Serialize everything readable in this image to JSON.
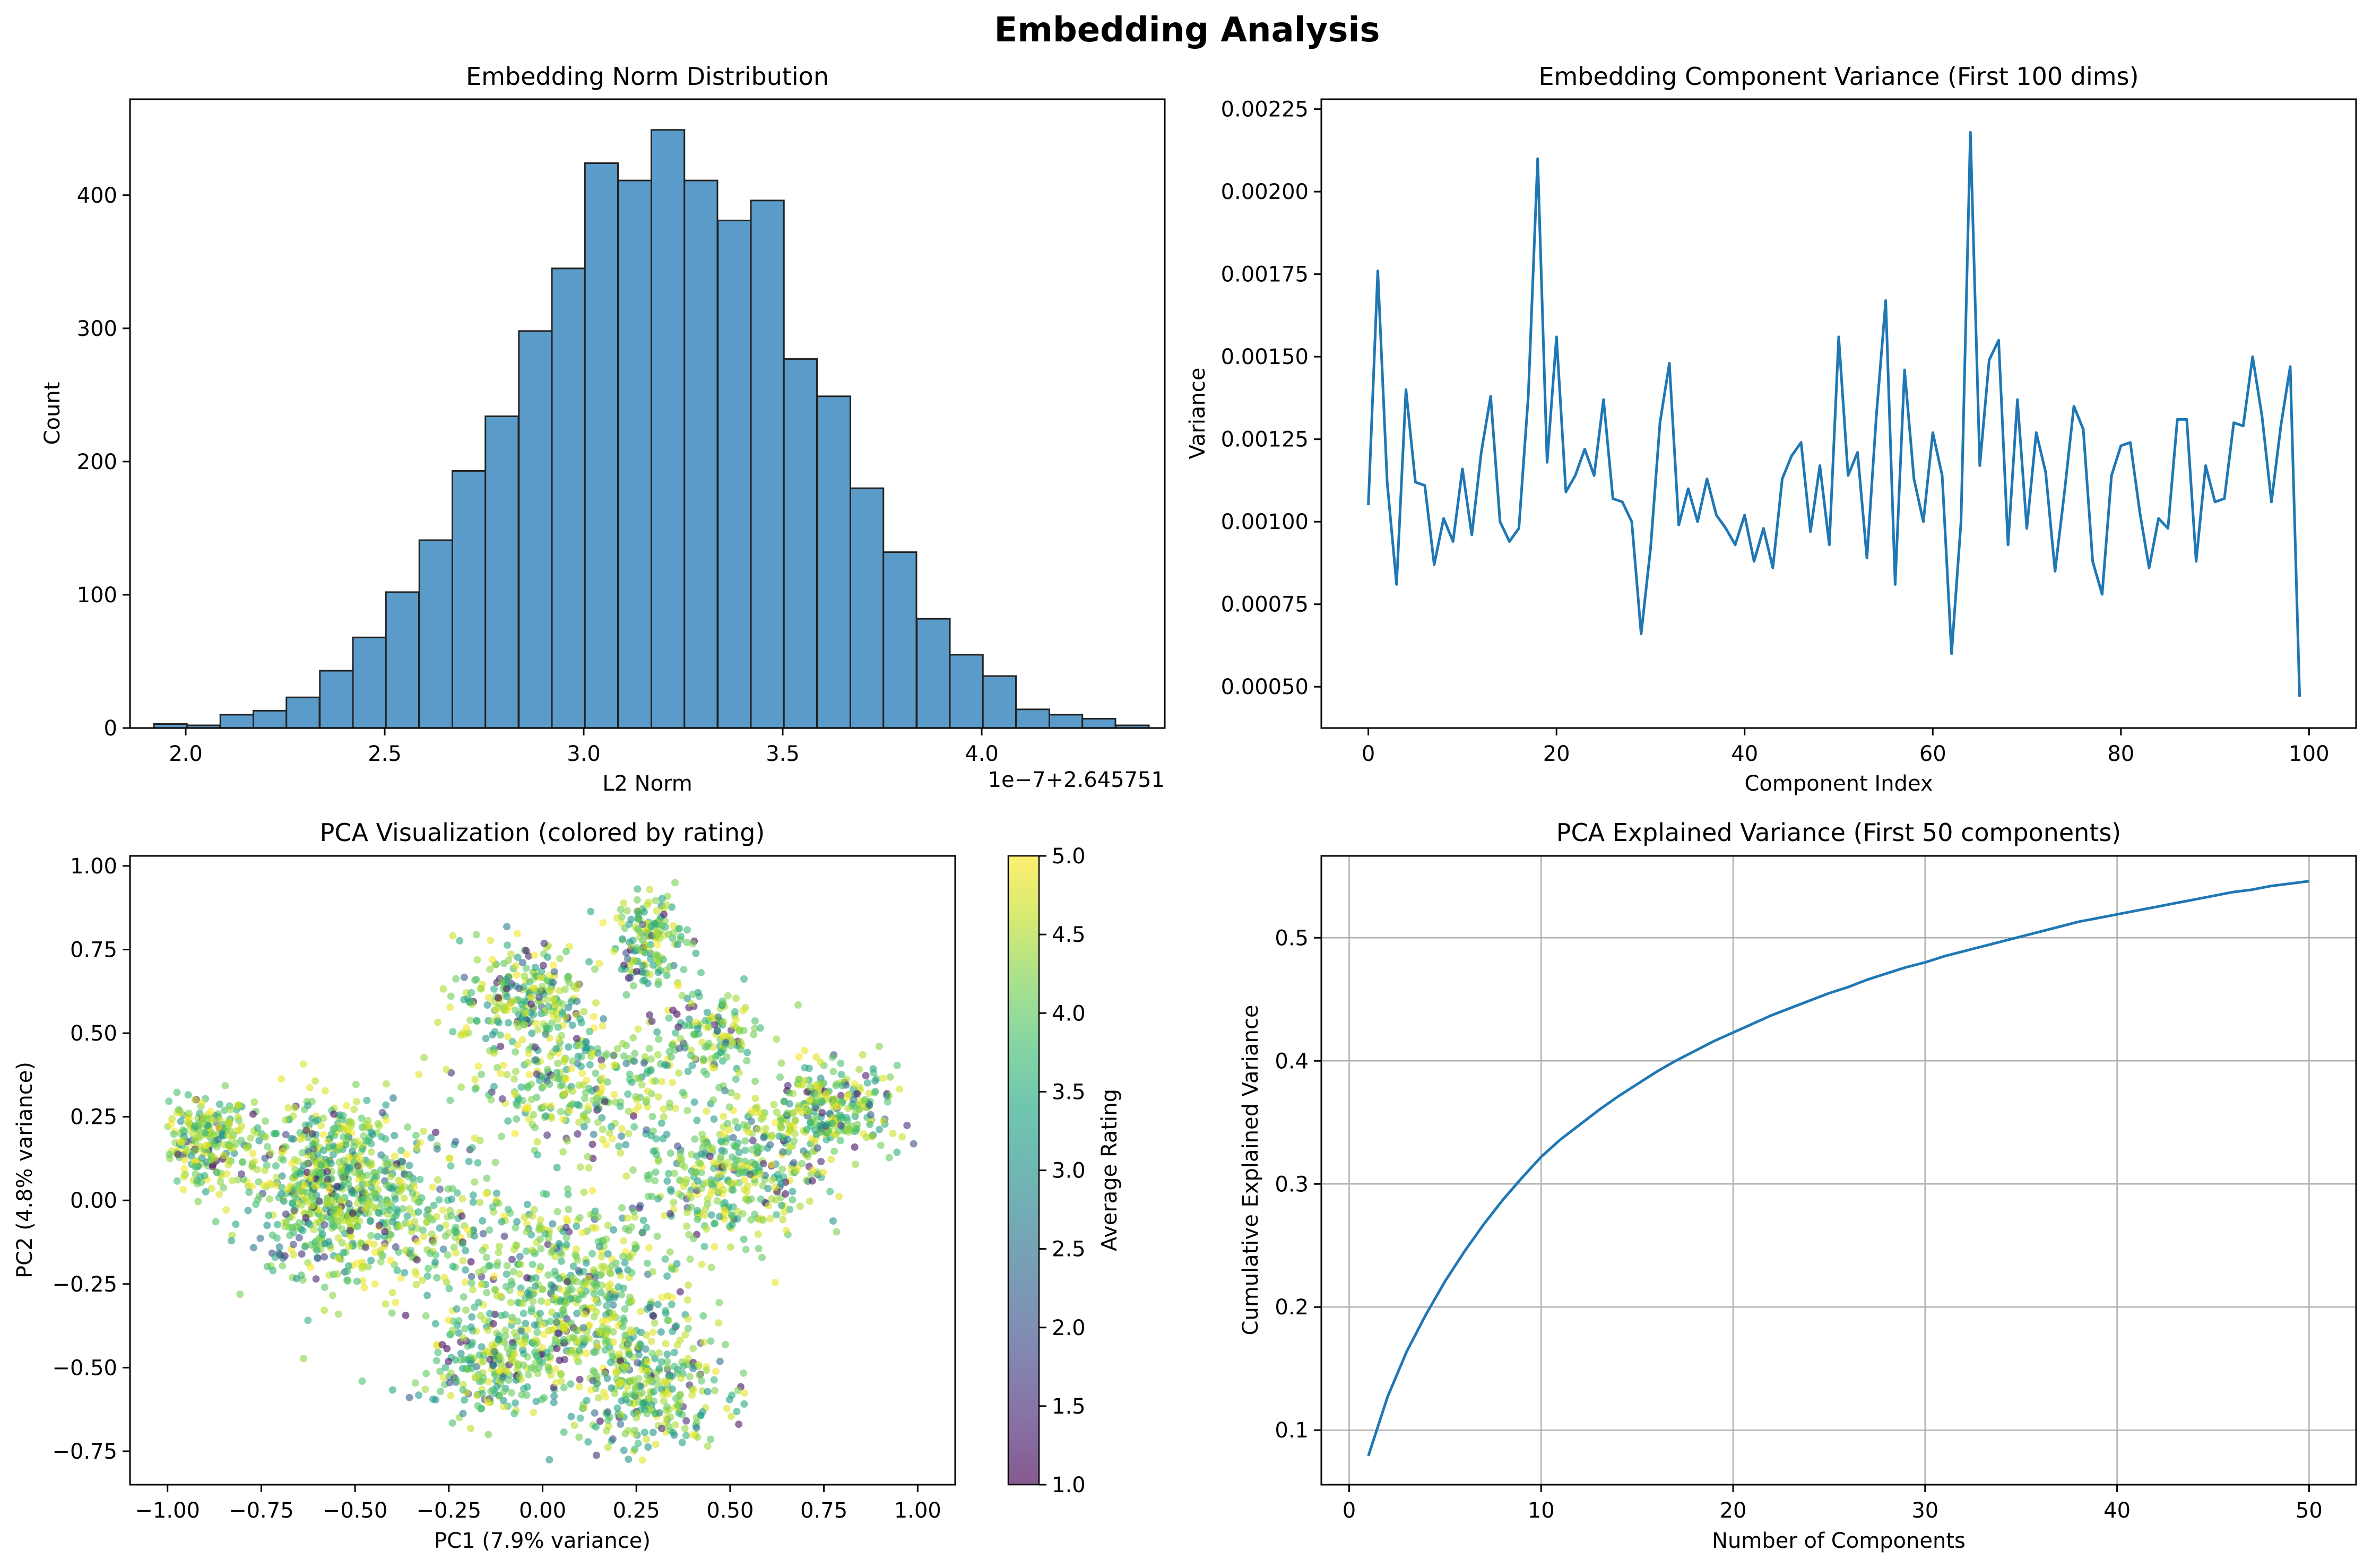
{
  "figure": {
    "title": "Embedding Analysis"
  },
  "colors": {
    "accent": "#1f77b4",
    "hist_fill": "#5b9bc9",
    "grid": "#b0b0b0"
  },
  "chart_data": [
    {
      "type": "bar",
      "title": "Embedding Norm Distribution",
      "xlabel": "L2 Norm",
      "ylabel": "Count",
      "offset_label": "1e−7+2.645751",
      "xlim": [
        1.86,
        4.46
      ],
      "ylim": [
        0,
        472
      ],
      "xticks": [
        2.0,
        2.5,
        3.0,
        3.5,
        4.0
      ],
      "xtick_labels": [
        "2.0",
        "2.5",
        "3.0",
        "3.5",
        "4.0"
      ],
      "yticks": [
        0,
        100,
        200,
        300,
        400
      ],
      "bins": [
        1.92,
        2.003,
        2.087,
        2.17,
        2.253,
        2.337,
        2.42,
        2.503,
        2.587,
        2.67,
        2.753,
        2.837,
        2.92,
        3.003,
        3.087,
        3.17,
        3.253,
        3.337,
        3.42,
        3.503,
        3.587,
        3.67,
        3.753,
        3.837,
        3.92,
        4.003,
        4.087,
        4.17,
        4.253,
        4.337
      ],
      "values": [
        3,
        2,
        10,
        13,
        23,
        43,
        68,
        102,
        141,
        193,
        234,
        298,
        345,
        424,
        411,
        449,
        411,
        381,
        396,
        277,
        249,
        180,
        132,
        82,
        55,
        39,
        14,
        10,
        7,
        2
      ]
    },
    {
      "type": "line",
      "title": "Embedding Component Variance (First 100 dims)",
      "xlabel": "Component Index",
      "ylabel": "Variance",
      "xlim": [
        -5,
        105
      ],
      "ylim": [
        0.000375,
        0.00228
      ],
      "xticks": [
        0,
        20,
        40,
        60,
        80,
        100
      ],
      "yticks": [
        0.0005,
        0.00075,
        0.001,
        0.00125,
        0.0015,
        0.00175,
        0.002,
        0.00225
      ],
      "ytick_labels": [
        "0.00050",
        "0.00075",
        "0.00100",
        "0.00125",
        "0.00150",
        "0.00175",
        "0.00200",
        "0.00225"
      ],
      "y": [
        0.00105,
        0.00176,
        0.00112,
        0.00081,
        0.0014,
        0.00112,
        0.00111,
        0.00087,
        0.00101,
        0.00094,
        0.00116,
        0.00096,
        0.00121,
        0.00138,
        0.001,
        0.00094,
        0.00098,
        0.00138,
        0.0021,
        0.00118,
        0.00156,
        0.00109,
        0.00114,
        0.00122,
        0.00114,
        0.00137,
        0.00107,
        0.00106,
        0.001,
        0.00066,
        0.00092,
        0.0013,
        0.00148,
        0.00099,
        0.0011,
        0.001,
        0.00113,
        0.00102,
        0.00098,
        0.00093,
        0.00102,
        0.00088,
        0.00098,
        0.00086,
        0.00113,
        0.0012,
        0.00124,
        0.00097,
        0.00117,
        0.00093,
        0.00156,
        0.00114,
        0.00121,
        0.00089,
        0.00132,
        0.00167,
        0.00081,
        0.00146,
        0.00113,
        0.001,
        0.00127,
        0.00114,
        0.0006,
        0.001,
        0.00218,
        0.00117,
        0.00149,
        0.00155,
        0.00093,
        0.00137,
        0.00098,
        0.00127,
        0.00115,
        0.00085,
        0.00109,
        0.00135,
        0.00128,
        0.00088,
        0.00078,
        0.00114,
        0.00123,
        0.00124,
        0.00103,
        0.00086,
        0.00101,
        0.00098,
        0.00131,
        0.00131,
        0.00088,
        0.00117,
        0.00106,
        0.00107,
        0.0013,
        0.00129,
        0.0015,
        0.00132,
        0.00106,
        0.00129,
        0.00147,
        0.00047
      ]
    },
    {
      "type": "scatter",
      "title": "PCA Visualization (colored by rating)",
      "xlabel": "PC1 (7.9% variance)",
      "ylabel": "PC2 (4.8% variance)",
      "xlim": [
        -1.1,
        1.1
      ],
      "ylim": [
        -0.85,
        1.03
      ],
      "xticks": [
        -1.0,
        -0.75,
        -0.5,
        -0.25,
        0.0,
        0.25,
        0.5,
        0.75,
        1.0
      ],
      "xtick_labels": [
        "−1.00",
        "−0.75",
        "−0.50",
        "−0.25",
        "0.00",
        "0.25",
        "0.50",
        "0.75",
        "1.00"
      ],
      "yticks": [
        -0.75,
        -0.5,
        -0.25,
        0.0,
        0.25,
        0.5,
        0.75,
        1.0
      ],
      "ytick_labels": [
        "−0.75",
        "−0.50",
        "−0.25",
        "0.00",
        "0.25",
        "0.50",
        "0.75",
        "1.00"
      ],
      "colorbar": {
        "label": "Average Rating",
        "range": [
          1.0,
          5.0
        ],
        "ticks": [
          1.0,
          1.5,
          2.0,
          2.5,
          3.0,
          3.5,
          4.0,
          4.5,
          5.0
        ],
        "tick_labels": [
          "1.0",
          "1.5",
          "2.0",
          "2.5",
          "3.0",
          "3.5",
          "4.0",
          "4.5",
          "5.0"
        ],
        "colormap": "viridis"
      },
      "clusters": [
        {
          "x": -0.9,
          "y": 0.18,
          "sx": 0.06,
          "sy": 0.07,
          "n": 240
        },
        {
          "x": -0.58,
          "y": 0.05,
          "sx": 0.1,
          "sy": 0.13,
          "n": 620
        },
        {
          "x": -0.35,
          "y": -0.05,
          "sx": 0.12,
          "sy": 0.12,
          "n": 240
        },
        {
          "x": -0.05,
          "y": 0.62,
          "sx": 0.09,
          "sy": 0.08,
          "n": 230
        },
        {
          "x": 0.1,
          "y": 0.35,
          "sx": 0.14,
          "sy": 0.1,
          "n": 320
        },
        {
          "x": 0.28,
          "y": 0.78,
          "sx": 0.05,
          "sy": 0.07,
          "n": 160
        },
        {
          "x": 0.45,
          "y": 0.5,
          "sx": 0.07,
          "sy": 0.07,
          "n": 140
        },
        {
          "x": 0.75,
          "y": 0.27,
          "sx": 0.1,
          "sy": 0.07,
          "n": 300
        },
        {
          "x": 0.5,
          "y": 0.08,
          "sx": 0.12,
          "sy": 0.1,
          "n": 360
        },
        {
          "x": 0.05,
          "y": -0.3,
          "sx": 0.16,
          "sy": 0.16,
          "n": 620
        },
        {
          "x": 0.28,
          "y": -0.55,
          "sx": 0.1,
          "sy": 0.1,
          "n": 300
        },
        {
          "x": -0.15,
          "y": -0.5,
          "sx": 0.08,
          "sy": 0.07,
          "n": 160
        }
      ]
    },
    {
      "type": "line",
      "title": "PCA Explained Variance (First 50 components)",
      "xlabel": "Number of Components",
      "ylabel": "Cumulative Explained Variance",
      "grid": true,
      "xlim": [
        -1.45,
        52.45
      ],
      "ylim": [
        0.0557,
        0.5665
      ],
      "xticks": [
        0,
        10,
        20,
        30,
        40,
        50
      ],
      "yticks": [
        0.1,
        0.2,
        0.3,
        0.4,
        0.5
      ],
      "ytick_labels": [
        "0.1",
        "0.2",
        "0.3",
        "0.4",
        "0.5"
      ],
      "x": [
        1,
        2,
        3,
        4,
        5,
        6,
        7,
        8,
        9,
        10,
        11,
        12,
        13,
        14,
        15,
        16,
        17,
        18,
        19,
        20,
        21,
        22,
        23,
        24,
        25,
        26,
        27,
        28,
        29,
        30,
        31,
        32,
        33,
        34,
        35,
        36,
        37,
        38,
        39,
        40,
        41,
        42,
        43,
        44,
        45,
        46,
        47,
        48,
        49,
        50
      ],
      "y": [
        0.079,
        0.127,
        0.164,
        0.194,
        0.221,
        0.245,
        0.267,
        0.287,
        0.305,
        0.322,
        0.336,
        0.348,
        0.36,
        0.371,
        0.381,
        0.391,
        0.4,
        0.408,
        0.416,
        0.423,
        0.43,
        0.437,
        0.443,
        0.449,
        0.455,
        0.46,
        0.466,
        0.471,
        0.476,
        0.48,
        0.485,
        0.489,
        0.493,
        0.497,
        0.501,
        0.505,
        0.509,
        0.513,
        0.516,
        0.519,
        0.522,
        0.525,
        0.528,
        0.531,
        0.534,
        0.537,
        0.539,
        0.542,
        0.544,
        0.546
      ]
    }
  ]
}
